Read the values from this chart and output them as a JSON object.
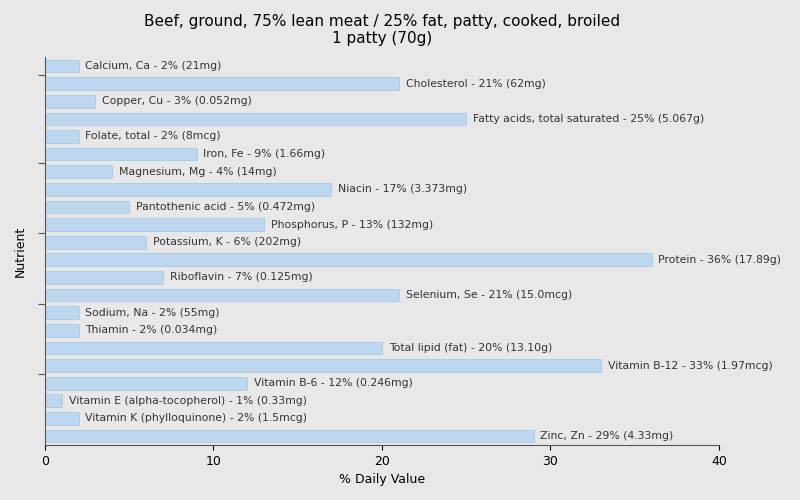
{
  "title": "Beef, ground, 75% lean meat / 25% fat, patty, cooked, broiled\n1 patty (70g)",
  "xlabel": "% Daily Value",
  "ylabel": "Nutrient",
  "nutrients": [
    "Calcium, Ca - 2% (21mg)",
    "Cholesterol - 21% (62mg)",
    "Copper, Cu - 3% (0.052mg)",
    "Fatty acids, total saturated - 25% (5.067g)",
    "Folate, total - 2% (8mcg)",
    "Iron, Fe - 9% (1.66mg)",
    "Magnesium, Mg - 4% (14mg)",
    "Niacin - 17% (3.373mg)",
    "Pantothenic acid - 5% (0.472mg)",
    "Phosphorus, P - 13% (132mg)",
    "Potassium, K - 6% (202mg)",
    "Protein - 36% (17.89g)",
    "Riboflavin - 7% (0.125mg)",
    "Selenium, Se - 21% (15.0mcg)",
    "Sodium, Na - 2% (55mg)",
    "Thiamin - 2% (0.034mg)",
    "Total lipid (fat) - 20% (13.10g)",
    "Vitamin B-12 - 33% (1.97mcg)",
    "Vitamin B-6 - 12% (0.246mg)",
    "Vitamin E (alpha-tocopherol) - 1% (0.33mg)",
    "Vitamin K (phylloquinone) - 2% (1.5mcg)",
    "Zinc, Zn - 29% (4.33mg)"
  ],
  "values": [
    2,
    21,
    3,
    25,
    2,
    9,
    4,
    17,
    5,
    13,
    6,
    36,
    7,
    21,
    2,
    2,
    20,
    33,
    12,
    1,
    2,
    29
  ],
  "bar_color": "#bdd7ee",
  "bar_edge_color": "#9ec6e0",
  "background_color": "#e8e8e8",
  "xlim": [
    0,
    40
  ],
  "xticks": [
    0,
    10,
    20,
    30,
    40
  ],
  "title_fontsize": 11,
  "label_fontsize": 7.8,
  "tick_fontsize": 9,
  "bar_height": 0.72,
  "label_color": "#333333"
}
